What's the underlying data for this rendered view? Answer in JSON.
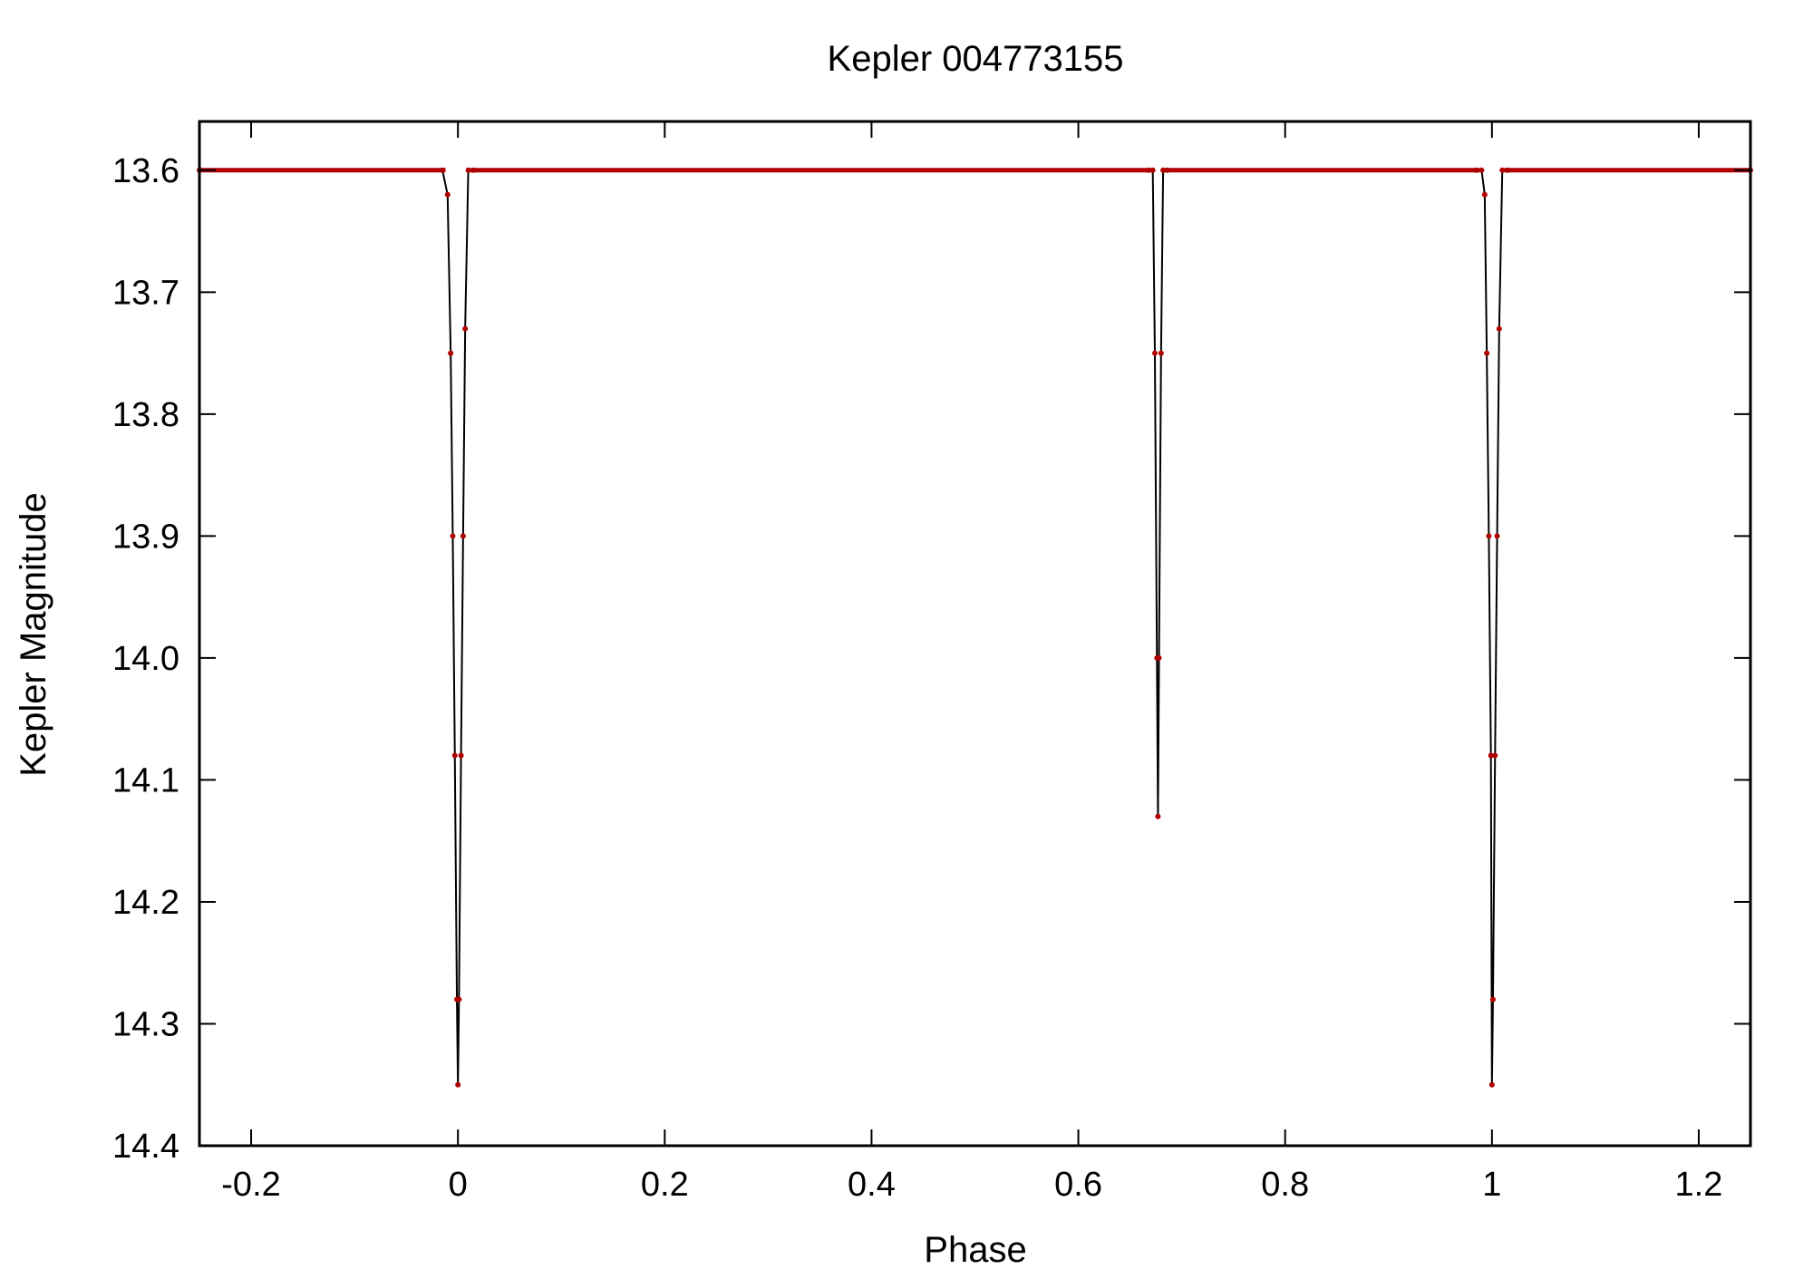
{
  "chart_data": {
    "type": "line",
    "title": "Kepler 004773155",
    "xlabel": "Phase",
    "ylabel": "Kepler Magnitude",
    "xlim": [
      -0.25,
      1.25
    ],
    "ylim": [
      13.56,
      14.4
    ],
    "y_inverted": true,
    "grid": false,
    "x_ticks": [
      "-0.2",
      "0",
      "0.2",
      "0.4",
      "0.6",
      "0.8",
      "1",
      "1.2"
    ],
    "y_ticks": [
      "13.6",
      "13.7",
      "13.8",
      "13.9",
      "14.0",
      "14.1",
      "14.2",
      "14.3",
      "14.4"
    ],
    "baseline": 13.6,
    "colors": {
      "points": "#b00000",
      "line": "#000000",
      "axes": "#000000"
    },
    "series": [
      {
        "x": [
          -0.25,
          -0.015,
          -0.01,
          -0.007,
          -0.005,
          -0.003,
          -0.001,
          0.0,
          0.001,
          0.003,
          0.005,
          0.007,
          0.01,
          0.015,
          0.668,
          0.672,
          0.674,
          0.676,
          0.677,
          0.678,
          0.68,
          0.682,
          0.686,
          0.985,
          0.99,
          0.993,
          0.995,
          0.997,
          0.999,
          1.0,
          1.001,
          1.003,
          1.005,
          1.007,
          1.01,
          1.015,
          1.25
        ],
        "y": [
          13.6,
          13.6,
          13.62,
          13.75,
          13.9,
          14.08,
          14.28,
          14.35,
          14.28,
          14.08,
          13.9,
          13.73,
          13.6,
          13.6,
          13.6,
          13.6,
          13.75,
          14.0,
          14.13,
          14.0,
          13.75,
          13.6,
          13.6,
          13.6,
          13.6,
          13.62,
          13.75,
          13.9,
          14.08,
          14.35,
          14.28,
          14.08,
          13.9,
          13.73,
          13.6,
          13.6,
          13.6
        ]
      }
    ]
  }
}
